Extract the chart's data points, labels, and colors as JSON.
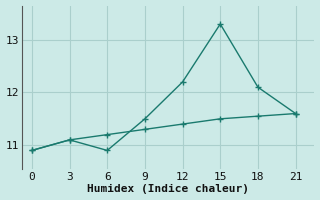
{
  "line1_x": [
    0,
    3,
    6,
    9,
    12,
    15,
    18,
    21
  ],
  "line1_y": [
    10.9,
    11.1,
    10.9,
    11.5,
    12.2,
    13.3,
    12.1,
    11.6
  ],
  "line2_x": [
    0,
    3,
    6,
    9,
    12,
    15,
    18,
    21
  ],
  "line2_y": [
    10.9,
    11.1,
    11.2,
    11.3,
    11.4,
    11.5,
    11.55,
    11.6
  ],
  "line_color": "#1a7a6e",
  "bg_color": "#cceae7",
  "grid_color": "#aacfcc",
  "xlabel": "Humidex (Indice chaleur)",
  "xticks": [
    0,
    3,
    6,
    9,
    12,
    15,
    18,
    21
  ],
  "yticks": [
    11,
    12,
    13
  ],
  "xlim": [
    -0.8,
    22.5
  ],
  "ylim": [
    10.55,
    13.65
  ],
  "marker": "+",
  "marker_size": 5,
  "linewidth": 1.0,
  "xlabel_fontsize": 8,
  "tick_fontsize": 8
}
